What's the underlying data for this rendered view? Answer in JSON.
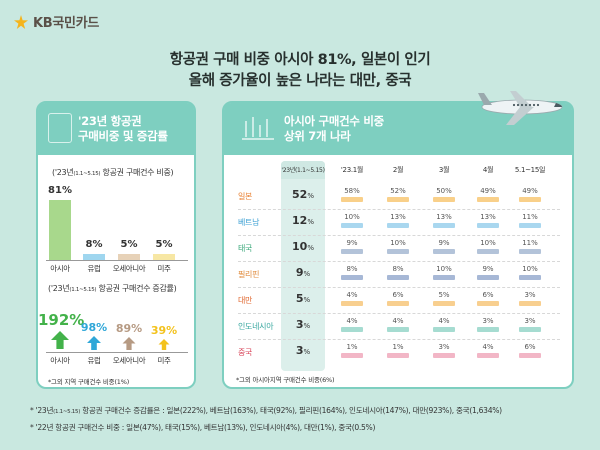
{
  "brand": {
    "name": "KB국민카드"
  },
  "headline": {
    "line1": "항공권 구매 비중 아시아 81%, 일본이 인기",
    "line2": "올해 증가율이 높은 나라는 대만, 중국"
  },
  "left_panel": {
    "title_line1": "'23년 항공권",
    "title_line2": "구매비중 및 증감률",
    "share_label_pre": "('23년",
    "share_label_period": "(1.1~5.15)",
    "share_label_post": "항공권 구매건수 비중)",
    "share_bars": [
      {
        "region": "아시아",
        "value": "81%",
        "share": 81,
        "color": "#a8d88c"
      },
      {
        "region": "유럽",
        "value": "8%",
        "share": 8,
        "color": "#9fd6ef"
      },
      {
        "region": "오세아니아",
        "value": "5%",
        "share": 5,
        "color": "#e7d2b8"
      },
      {
        "region": "미주",
        "value": "5%",
        "share": 5,
        "color": "#f7e7a4"
      }
    ],
    "growth_label_pre": "('23년",
    "growth_label_period": "(1.1~5.15)",
    "growth_label_post": "항공권 구매건수 증감률)",
    "growth_items": [
      {
        "region": "아시아",
        "value": "192%",
        "color": "#43b24a"
      },
      {
        "region": "유럽",
        "value": "98%",
        "color": "#2fa7d8"
      },
      {
        "region": "오세아니아",
        "value": "89%",
        "color": "#b69a83"
      },
      {
        "region": "미주",
        "value": "39%",
        "color": "#f3c21d"
      }
    ],
    "footnote": "*그외 지역 구매건수 비중(1%)"
  },
  "right_panel": {
    "title_line1": "아시아 구매건수 비중",
    "title_line2": "상위 7개 나라",
    "headers": [
      "'23년(1.1~5.15)",
      "'23.1월",
      "2월",
      "3월",
      "4월",
      "5.1~15일"
    ],
    "rows": [
      {
        "country": "일본",
        "color": "#e87e2e",
        "total": "52",
        "cells": [
          "58%",
          "52%",
          "50%",
          "49%",
          "49%"
        ],
        "bar": "#f9d08a"
      },
      {
        "country": "베트남",
        "color": "#3a9fd3",
        "total": "12",
        "cells": [
          "10%",
          "13%",
          "13%",
          "13%",
          "11%"
        ],
        "bar": "#a9d7ef"
      },
      {
        "country": "태국",
        "color": "#3aa87a",
        "total": "10",
        "cells": [
          "9%",
          "10%",
          "9%",
          "10%",
          "11%"
        ],
        "bar": "#b3c3d9"
      },
      {
        "country": "필리핀",
        "color": "#e08a3a",
        "total": "9",
        "cells": [
          "8%",
          "8%",
          "10%",
          "9%",
          "10%"
        ],
        "bar": "#a7b8d6"
      },
      {
        "country": "대만",
        "color": "#e0662e",
        "total": "5",
        "cells": [
          "4%",
          "6%",
          "5%",
          "6%",
          "3%"
        ],
        "bar": "#f8cf8f"
      },
      {
        "country": "인도네시아",
        "color": "#3aa8a0",
        "total": "3",
        "cells": [
          "4%",
          "4%",
          "4%",
          "3%",
          "3%"
        ],
        "bar": "#a6dcd1"
      },
      {
        "country": "중국",
        "color": "#d8455a",
        "total": "3",
        "cells": [
          "1%",
          "1%",
          "3%",
          "4%",
          "6%"
        ],
        "bar": "#f2b6c6"
      }
    ],
    "pct_suffix": "%",
    "footnote": "*그외 아시아지역 구매건수 비중(6%)"
  },
  "notes": {
    "line1_pre": "* '23년",
    "line1_period": "(1.1~5.15)",
    "line1_post": "항공권 구매건수 증감률은 : 일본(222%), 베트남(163%), 태국(92%), 필리핀(164%), 인도네시아(147%), 대만(923%), 중국(1,634%)",
    "line2": "* '22년 항공권 구매건수 비중 : 일본(47%), 태국(15%), 베트남(13%), 인도네시아(4%), 대만(1%), 중국(0.5%)"
  }
}
